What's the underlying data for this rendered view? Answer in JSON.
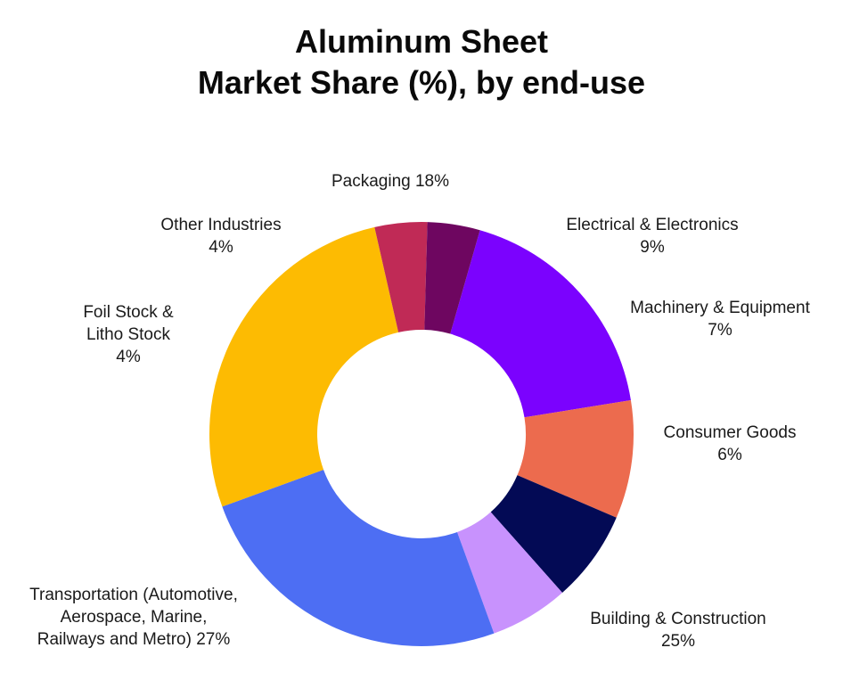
{
  "chart_data": {
    "type": "pie",
    "title_lines": [
      "Aluminum Sheet",
      "Market Share (%), by end-use"
    ],
    "slices": [
      {
        "label_lines": [
          "Packaging 18%"
        ],
        "value": 18,
        "color": "#7b02fe"
      },
      {
        "label_lines": [
          "Electrical & Electronics",
          "9%"
        ],
        "value": 9,
        "color": "#ec6b4e"
      },
      {
        "label_lines": [
          "Machinery & Equipment",
          "7%"
        ],
        "value": 7,
        "color": "#030a55"
      },
      {
        "label_lines": [
          "Consumer Goods",
          "6%"
        ],
        "value": 6,
        "color": "#c892fd"
      },
      {
        "label_lines": [
          "Building & Construction",
          "25%"
        ],
        "value": 25,
        "color": "#4d6ef3"
      },
      {
        "label_lines": [
          "Transportation (Automotive,",
          "Aerospace, Marine,",
          "Railways and Metro) 27%"
        ],
        "value": 27,
        "color": "#fdbb02"
      },
      {
        "label_lines": [
          "Foil Stock &",
          "Litho Stock",
          "4%"
        ],
        "value": 4,
        "color": "#c02a56"
      },
      {
        "label_lines": [
          "Other Industries",
          "4%"
        ],
        "value": 4,
        "color": "#6e0660"
      }
    ],
    "donut": true,
    "legend": "none"
  }
}
